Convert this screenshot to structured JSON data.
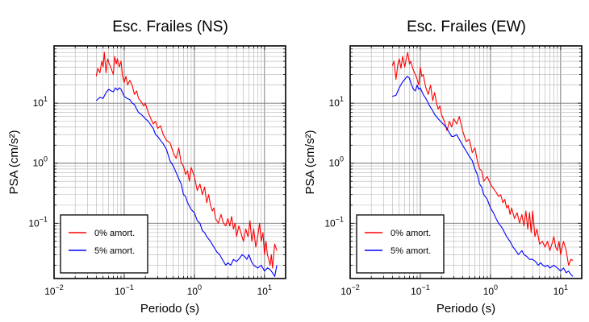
{
  "chart_data": [
    {
      "type": "line",
      "title": "Esc. Frailes (NS)",
      "xlabel": "Periodo (s)",
      "ylabel": "PSA (cm/s²)",
      "xscale": "log",
      "yscale": "log",
      "xlim": [
        0.01,
        20
      ],
      "ylim": [
        0.012,
        90
      ],
      "xticks": [
        {
          "v": 0.01,
          "base": "10",
          "exp": "−2"
        },
        {
          "v": 0.1,
          "base": "10",
          "exp": "−1"
        },
        {
          "v": 1,
          "base": "10",
          "exp": "0"
        },
        {
          "v": 10,
          "base": "10",
          "exp": "1"
        }
      ],
      "yticks": [
        {
          "v": 0.1,
          "base": "10",
          "exp": "−1"
        },
        {
          "v": 1,
          "base": "10",
          "exp": "0"
        },
        {
          "v": 10,
          "base": "10",
          "exp": "1"
        }
      ],
      "grid": true,
      "legend_position": "bottom-left",
      "series": [
        {
          "name": "0% amort.",
          "color": "#ff0000",
          "x": [
            0.04,
            0.042,
            0.045,
            0.048,
            0.05,
            0.052,
            0.055,
            0.058,
            0.06,
            0.063,
            0.066,
            0.07,
            0.073,
            0.077,
            0.08,
            0.085,
            0.09,
            0.095,
            0.1,
            0.106,
            0.112,
            0.12,
            0.13,
            0.14,
            0.15,
            0.16,
            0.17,
            0.18,
            0.19,
            0.2,
            0.22,
            0.24,
            0.26,
            0.28,
            0.3,
            0.33,
            0.36,
            0.4,
            0.45,
            0.5,
            0.55,
            0.6,
            0.65,
            0.7,
            0.75,
            0.8,
            0.85,
            0.9,
            1.0,
            1.1,
            1.2,
            1.3,
            1.4,
            1.5,
            1.6,
            1.7,
            1.8,
            1.9,
            2.0,
            2.2,
            2.4,
            2.6,
            2.8,
            3.0,
            3.2,
            3.4,
            3.6,
            3.8,
            4.0,
            4.3,
            4.6,
            5.0,
            5.4,
            5.8,
            6.2,
            6.6,
            7.0,
            7.5,
            8.0,
            8.5,
            9.0,
            9.5,
            10.0,
            10.5,
            11.0,
            11.5,
            12.0,
            12.5,
            13.0,
            14.0,
            15.0
          ],
          "y": [
            28,
            38,
            32,
            50,
            40,
            70,
            32,
            55,
            48,
            42,
            36,
            30,
            60,
            45,
            55,
            40,
            50,
            28,
            22,
            28,
            20,
            24,
            20,
            14,
            16,
            12,
            11,
            10,
            9,
            10,
            7,
            5.5,
            4.5,
            5,
            3.8,
            4.2,
            3,
            2.4,
            2.2,
            1.5,
            1.2,
            1.8,
            1.0,
            0.9,
            0.65,
            0.75,
            0.5,
            0.85,
            0.6,
            0.35,
            0.45,
            0.3,
            0.4,
            0.22,
            0.3,
            0.2,
            0.16,
            0.18,
            0.12,
            0.1,
            0.14,
            0.1,
            0.09,
            0.12,
            0.09,
            0.13,
            0.08,
            0.1,
            0.06,
            0.09,
            0.07,
            0.05,
            0.08,
            0.06,
            0.11,
            0.05,
            0.08,
            0.04,
            0.06,
            0.1,
            0.05,
            0.07,
            0.03,
            0.05,
            0.03,
            0.025,
            0.02,
            0.03,
            0.018,
            0.045,
            0.035
          ]
        },
        {
          "name": "5% amort.",
          "color": "#0000ff",
          "x": [
            0.04,
            0.045,
            0.05,
            0.055,
            0.06,
            0.065,
            0.07,
            0.075,
            0.08,
            0.085,
            0.09,
            0.095,
            0.1,
            0.11,
            0.12,
            0.13,
            0.14,
            0.15,
            0.16,
            0.18,
            0.2,
            0.22,
            0.24,
            0.26,
            0.28,
            0.3,
            0.33,
            0.36,
            0.4,
            0.45,
            0.5,
            0.55,
            0.6,
            0.65,
            0.7,
            0.75,
            0.8,
            0.9,
            1.0,
            1.1,
            1.2,
            1.3,
            1.4,
            1.5,
            1.7,
            1.9,
            2.1,
            2.3,
            2.5,
            2.8,
            3.0,
            3.3,
            3.6,
            4.0,
            4.4,
            4.8,
            5.2,
            5.6,
            6.0,
            6.5,
            7.0,
            8.0,
            9.0,
            10.0,
            11.0,
            12.0,
            13.0,
            14.0,
            15.0
          ],
          "y": [
            11,
            12.5,
            12,
            15,
            17,
            16,
            15.5,
            18,
            16.5,
            18,
            17,
            15,
            13,
            12,
            11.5,
            10,
            9.5,
            8,
            7,
            6.3,
            5.5,
            5,
            4.3,
            3.8,
            3.0,
            2.8,
            2.4,
            2.1,
            1.7,
            1.1,
            0.9,
            0.7,
            0.55,
            0.45,
            0.3,
            0.28,
            0.22,
            0.17,
            0.15,
            0.11,
            0.1,
            0.075,
            0.07,
            0.06,
            0.05,
            0.04,
            0.033,
            0.03,
            0.025,
            0.02,
            0.022,
            0.02,
            0.025,
            0.023,
            0.026,
            0.03,
            0.028,
            0.025,
            0.03,
            0.023,
            0.02,
            0.018,
            0.02,
            0.016,
            0.018,
            0.017,
            0.015,
            0.013,
            0.02
          ]
        }
      ]
    },
    {
      "type": "line",
      "title": "Esc. Frailes (EW)",
      "xlabel": "Periodo (s)",
      "ylabel": "PSA (cm/s²)",
      "xscale": "log",
      "yscale": "log",
      "xlim": [
        0.01,
        20
      ],
      "ylim": [
        0.012,
        90
      ],
      "xticks": [
        {
          "v": 0.01,
          "base": "10",
          "exp": "−2"
        },
        {
          "v": 0.1,
          "base": "10",
          "exp": "−1"
        },
        {
          "v": 1,
          "base": "10",
          "exp": "0"
        },
        {
          "v": 10,
          "base": "10",
          "exp": "1"
        }
      ],
      "yticks": [
        {
          "v": 0.1,
          "base": "10",
          "exp": "−1"
        },
        {
          "v": 1,
          "base": "10",
          "exp": "0"
        },
        {
          "v": 10,
          "base": "10",
          "exp": "1"
        }
      ],
      "grid": true,
      "legend_position": "bottom-left",
      "series": [
        {
          "name": "0% amort.",
          "color": "#ff0000",
          "x": [
            0.04,
            0.042,
            0.045,
            0.048,
            0.05,
            0.053,
            0.056,
            0.06,
            0.063,
            0.066,
            0.07,
            0.073,
            0.077,
            0.08,
            0.085,
            0.09,
            0.095,
            0.1,
            0.105,
            0.11,
            0.12,
            0.13,
            0.14,
            0.15,
            0.16,
            0.17,
            0.18,
            0.19,
            0.2,
            0.22,
            0.24,
            0.26,
            0.28,
            0.3,
            0.33,
            0.36,
            0.4,
            0.45,
            0.5,
            0.55,
            0.6,
            0.65,
            0.7,
            0.75,
            0.8,
            0.85,
            0.9,
            1.0,
            1.1,
            1.2,
            1.3,
            1.4,
            1.5,
            1.6,
            1.7,
            1.8,
            1.9,
            2.0,
            2.2,
            2.4,
            2.6,
            2.8,
            3.0,
            3.2,
            3.4,
            3.6,
            3.8,
            4.0,
            4.3,
            4.6,
            5.0,
            5.5,
            6.0,
            6.5,
            7.0,
            7.5,
            8.0,
            8.5,
            9.0,
            9.5,
            10.0,
            11.0,
            12.0,
            13.0,
            14.0,
            15.0
          ],
          "y": [
            42,
            50,
            25,
            45,
            55,
            38,
            60,
            40,
            55,
            70,
            45,
            50,
            40,
            35,
            30,
            25,
            20,
            40,
            28,
            30,
            18,
            14,
            20,
            11,
            15,
            10,
            8,
            9,
            6.5,
            5,
            3.5,
            5,
            4,
            5.5,
            4.5,
            6,
            3.5,
            2.3,
            2.5,
            1.5,
            1.8,
            1.1,
            0.8,
            0.75,
            0.5,
            0.55,
            0.6,
            0.45,
            0.38,
            0.33,
            0.28,
            0.3,
            0.22,
            0.25,
            0.18,
            0.2,
            0.14,
            0.18,
            0.12,
            0.15,
            0.1,
            0.14,
            0.09,
            0.16,
            0.08,
            0.15,
            0.07,
            0.16,
            0.06,
            0.08,
            0.045,
            0.05,
            0.04,
            0.05,
            0.035,
            0.045,
            0.06,
            0.04,
            0.035,
            0.05,
            0.03,
            0.05,
            0.035,
            0.02,
            0.025,
            0.024
          ]
        },
        {
          "name": "5% amort.",
          "color": "#0000ff",
          "x": [
            0.04,
            0.045,
            0.05,
            0.055,
            0.06,
            0.065,
            0.07,
            0.075,
            0.08,
            0.085,
            0.09,
            0.095,
            0.1,
            0.11,
            0.12,
            0.13,
            0.14,
            0.15,
            0.16,
            0.18,
            0.2,
            0.22,
            0.24,
            0.26,
            0.28,
            0.3,
            0.33,
            0.36,
            0.4,
            0.45,
            0.5,
            0.55,
            0.6,
            0.65,
            0.7,
            0.75,
            0.8,
            0.9,
            1.0,
            1.1,
            1.2,
            1.3,
            1.4,
            1.5,
            1.7,
            1.9,
            2.1,
            2.3,
            2.5,
            2.8,
            3.0,
            3.3,
            3.6,
            4.0,
            4.4,
            4.8,
            5.2,
            5.6,
            6.0,
            6.5,
            7.0,
            8.0,
            9.0,
            10.0,
            11.0,
            12.0,
            13.0,
            14.0,
            15.0
          ],
          "y": [
            13,
            13.5,
            18,
            22,
            25,
            28,
            26,
            20,
            17,
            16,
            20,
            17,
            18,
            14,
            12,
            10,
            8.5,
            7.5,
            6.5,
            5.5,
            4.8,
            4.3,
            3.8,
            3.2,
            2.8,
            2.8,
            3,
            2.5,
            2.0,
            1.6,
            1.3,
            1.1,
            0.8,
            0.65,
            0.45,
            0.4,
            0.3,
            0.25,
            0.18,
            0.15,
            0.12,
            0.1,
            0.09,
            0.08,
            0.06,
            0.05,
            0.04,
            0.035,
            0.03,
            0.035,
            0.03,
            0.028,
            0.025,
            0.025,
            0.023,
            0.02,
            0.022,
            0.02,
            0.019,
            0.02,
            0.018,
            0.02,
            0.018,
            0.016,
            0.018,
            0.015,
            0.016,
            0.014,
            0.013
          ]
        }
      ]
    }
  ]
}
